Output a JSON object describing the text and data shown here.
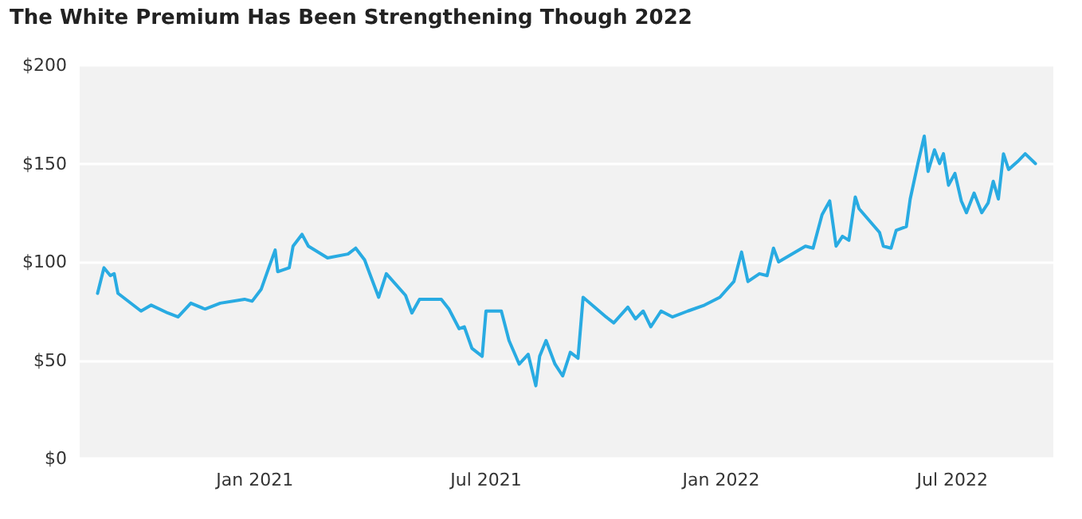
{
  "chart_data": {
    "type": "line",
    "title": "The White Premium Has Been Strengthening Though 2022",
    "x": [
      "2020-08-31",
      "2020-09-05",
      "2020-09-10",
      "2020-09-13",
      "2020-09-16",
      "2020-10-04",
      "2020-10-12",
      "2020-10-25",
      "2020-11-02",
      "2020-11-12",
      "2020-11-23",
      "2020-12-05",
      "2020-12-24",
      "2020-12-30",
      "2021-01-06",
      "2021-01-12",
      "2021-01-17",
      "2021-01-19",
      "2021-01-28",
      "2021-01-31",
      "2021-02-07",
      "2021-02-12",
      "2021-02-27",
      "2021-03-15",
      "2021-03-21",
      "2021-03-28",
      "2021-04-01",
      "2021-04-08",
      "2021-04-14",
      "2021-04-29",
      "2021-05-04",
      "2021-05-10",
      "2021-05-27",
      "2021-06-02",
      "2021-06-10",
      "2021-06-14",
      "2021-06-20",
      "2021-06-28",
      "2021-07-01",
      "2021-07-13",
      "2021-07-19",
      "2021-07-27",
      "2021-08-03",
      "2021-08-09",
      "2021-08-12",
      "2021-08-17",
      "2021-08-24",
      "2021-08-30",
      "2021-09-05",
      "2021-09-11",
      "2021-09-15",
      "2021-10-03",
      "2021-10-09",
      "2021-10-20",
      "2021-10-26",
      "2021-11-01",
      "2021-11-07",
      "2021-11-15",
      "2021-11-24",
      "2021-12-06",
      "2021-12-19",
      "2021-12-31",
      "2022-01-11",
      "2022-01-17",
      "2022-01-22",
      "2022-01-31",
      "2022-02-06",
      "2022-02-11",
      "2022-02-15",
      "2022-03-08",
      "2022-03-14",
      "2022-03-21",
      "2022-03-27",
      "2022-04-01",
      "2022-04-06",
      "2022-04-11",
      "2022-04-16",
      "2022-04-19",
      "2022-05-05",
      "2022-05-08",
      "2022-05-14",
      "2022-05-18",
      "2022-05-26",
      "2022-05-29",
      "2022-06-04",
      "2022-06-09",
      "2022-06-12",
      "2022-06-17",
      "2022-06-21",
      "2022-06-24",
      "2022-06-28",
      "2022-07-03",
      "2022-07-08",
      "2022-07-12",
      "2022-07-18",
      "2022-07-24",
      "2022-07-29",
      "2022-08-02",
      "2022-08-06",
      "2022-08-10",
      "2022-08-14",
      "2022-08-21",
      "2022-08-27",
      "2022-09-04"
    ],
    "series": [
      {
        "color": "#29abe2",
        "values": [
          84,
          97,
          93,
          94,
          84,
          75,
          78,
          74,
          72,
          79,
          76,
          79,
          81,
          80,
          86,
          97,
          106,
          95,
          97,
          108,
          114,
          108,
          102,
          104,
          107,
          101,
          94,
          82,
          94,
          83,
          74,
          81,
          81,
          76,
          66,
          67,
          56,
          52,
          75,
          75,
          60,
          48,
          53,
          37,
          52,
          60,
          48,
          42,
          54,
          51,
          82,
          72,
          69,
          77,
          71,
          75,
          67,
          75,
          72,
          75,
          78,
          82,
          90,
          105,
          90,
          94,
          93,
          107,
          100,
          108,
          107,
          124,
          131,
          108,
          113,
          111,
          133,
          127,
          115,
          108,
          107,
          116,
          118,
          132,
          150,
          164,
          146,
          157,
          150,
          155,
          139,
          145,
          131,
          125,
          135,
          125,
          130,
          141,
          132,
          155,
          147,
          151,
          155,
          150
        ]
      }
    ],
    "xlim": [
      "2020-08-17",
      "2022-09-18"
    ],
    "xticks": [
      {
        "value": "2021-01-01",
        "label": "Jan 2021"
      },
      {
        "value": "2021-07-01",
        "label": "Jul 2021"
      },
      {
        "value": "2022-01-01",
        "label": "Jan 2022"
      },
      {
        "value": "2022-07-01",
        "label": "Jul 2022"
      }
    ],
    "ylim": [
      0,
      200
    ],
    "yticks": [
      {
        "value": 0,
        "label": "$0"
      },
      {
        "value": 50,
        "label": "$50"
      },
      {
        "value": 100,
        "label": "$100"
      },
      {
        "value": 150,
        "label": "$150"
      },
      {
        "value": 200,
        "label": "$200"
      }
    ],
    "grid": "y",
    "marker": "none",
    "line_style": "solid"
  }
}
